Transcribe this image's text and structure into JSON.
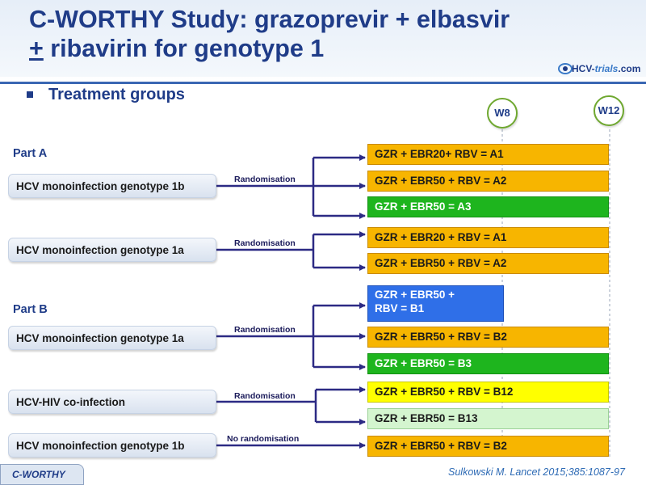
{
  "header": {
    "title_line1": "C-WORTHY Study: grazoprevir + elbasvir",
    "title_plus": "+",
    "title_line2_rest": " ribavirin for genotype 1",
    "logo_main": "HCV-",
    "logo_italic": "trials",
    "logo_suffix": ".com"
  },
  "subtitle": "Treatment groups",
  "timeline": {
    "w8": "W8",
    "w12": "W12"
  },
  "parts": {
    "a": "Part A",
    "b": "Part B"
  },
  "sources": [
    "HCV monoinfection genotype 1b",
    "HCV monoinfection genotype 1a",
    "HCV monoinfection genotype 1a",
    "HCV-HIV co-infection",
    "HCV monoinfection genotype 1b"
  ],
  "randomisation": [
    "Randomisation",
    "Randomisation",
    "Randomisation",
    "Randomisation",
    "No randomisation"
  ],
  "arms": [
    "GZR + EBR20+ RBV = A1",
    "GZR + EBR50 + RBV = A2",
    "GZR + EBR50 = A3",
    "GZR + EBR20 + RBV = A1",
    "GZR + EBR50 + RBV = A2",
    "GZR + EBR50 +",
    "RBV = B1",
    "GZR + EBR50 + RBV = B2",
    "GZR + EBR50 = B3",
    "GZR + EBR50 + RBV = B12",
    "GZR + EBR50 = B13",
    "GZR + EBR50 + RBV = B2"
  ],
  "colors": {
    "title": "#1f3c88",
    "arrow": "#2c2a84",
    "orange": "#f7b500",
    "green": "#1eb51e",
    "yellow": "#ffff00",
    "light_green": "#d4f5cf",
    "blue": "#2f6fe8"
  },
  "footer": {
    "tab": "C-WORTHY",
    "citation": "Sulkowski M. Lancet 2015;385:1087-97"
  }
}
